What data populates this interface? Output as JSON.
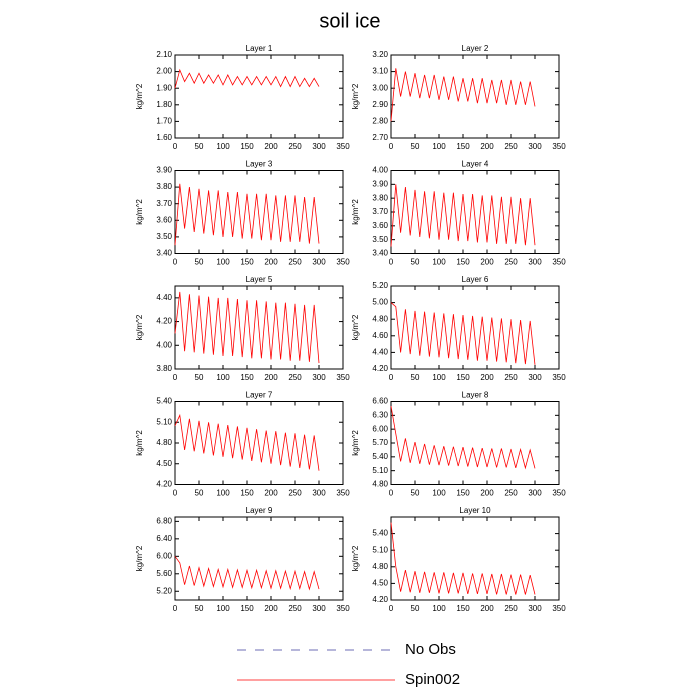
{
  "title": "soil ice",
  "legend": [
    {
      "name": "No Obs",
      "color": "#3c3c9c",
      "dash": true
    },
    {
      "name": "Spin002",
      "color": "#ff0000",
      "dash": false
    }
  ],
  "chart_data": [
    {
      "type": "line",
      "title": "Layer 1",
      "y_label": "kg/m^2",
      "xlim": [
        0,
        350
      ],
      "xticks": [
        0,
        50,
        100,
        150,
        200,
        250,
        300,
        350
      ],
      "ylim": [
        1.6,
        2.1
      ],
      "yticks": [
        {
          "value": 1.6,
          "label": "1.60"
        },
        {
          "value": 1.7,
          "label": "1.70"
        },
        {
          "value": 1.8,
          "label": "1.80"
        },
        {
          "value": 1.9,
          "label": "1.90"
        },
        {
          "value": 2.0,
          "label": "2.00"
        },
        {
          "value": 2.1,
          "label": "2.10"
        }
      ],
      "x": [
        0,
        10,
        20,
        30,
        40,
        50,
        60,
        70,
        80,
        90,
        100,
        110,
        120,
        130,
        140,
        150,
        160,
        170,
        180,
        190,
        200,
        210,
        220,
        230,
        240,
        250,
        260,
        270,
        280,
        290,
        300
      ],
      "series": [
        {
          "color": "#ff0000",
          "values": [
            1.9,
            2.01,
            1.94,
            1.99,
            1.93,
            1.99,
            1.93,
            1.98,
            1.93,
            1.98,
            1.92,
            1.98,
            1.92,
            1.97,
            1.92,
            1.97,
            1.92,
            1.97,
            1.92,
            1.97,
            1.92,
            1.97,
            1.91,
            1.97,
            1.91,
            1.97,
            1.91,
            1.96,
            1.91,
            1.96,
            1.91
          ]
        }
      ]
    },
    {
      "type": "line",
      "title": "Layer 2",
      "y_label": "kg/m^2",
      "xlim": [
        0,
        350
      ],
      "xticks": [
        0,
        50,
        100,
        150,
        200,
        250,
        300,
        350
      ],
      "ylim": [
        2.7,
        3.2
      ],
      "yticks": [
        {
          "value": 2.7,
          "label": "2.70"
        },
        {
          "value": 2.8,
          "label": "2.80"
        },
        {
          "value": 2.9,
          "label": "2.90"
        },
        {
          "value": 3.0,
          "label": "3.00"
        },
        {
          "value": 3.1,
          "label": "3.10"
        },
        {
          "value": 3.2,
          "label": "3.20"
        }
      ],
      "x": [
        0,
        10,
        20,
        30,
        40,
        50,
        60,
        70,
        80,
        90,
        100,
        110,
        120,
        130,
        140,
        150,
        160,
        170,
        180,
        190,
        200,
        210,
        220,
        230,
        240,
        250,
        260,
        270,
        280,
        290,
        300
      ],
      "series": [
        {
          "color": "#ff0000",
          "values": [
            2.8,
            3.12,
            2.95,
            3.1,
            2.95,
            3.09,
            2.94,
            3.08,
            2.94,
            3.08,
            2.93,
            3.07,
            2.93,
            3.07,
            2.92,
            3.06,
            2.92,
            3.06,
            2.91,
            3.06,
            2.91,
            3.05,
            2.91,
            3.05,
            2.9,
            3.05,
            2.9,
            3.04,
            2.9,
            3.04,
            2.89
          ]
        }
      ]
    },
    {
      "type": "line",
      "title": "Layer 3",
      "y_label": "kg/m^2",
      "xlim": [
        0,
        350
      ],
      "xticks": [
        0,
        50,
        100,
        150,
        200,
        250,
        300,
        350
      ],
      "ylim": [
        3.4,
        3.9
      ],
      "yticks": [
        {
          "value": 3.4,
          "label": "3.40"
        },
        {
          "value": 3.5,
          "label": "3.50"
        },
        {
          "value": 3.6,
          "label": "3.60"
        },
        {
          "value": 3.7,
          "label": "3.70"
        },
        {
          "value": 3.8,
          "label": "3.80"
        },
        {
          "value": 3.9,
          "label": "3.90"
        }
      ],
      "x": [
        0,
        10,
        20,
        30,
        40,
        50,
        60,
        70,
        80,
        90,
        100,
        110,
        120,
        130,
        140,
        150,
        160,
        170,
        180,
        190,
        200,
        210,
        220,
        230,
        240,
        250,
        260,
        270,
        280,
        290,
        300
      ],
      "series": [
        {
          "color": "#ff0000",
          "values": [
            3.45,
            3.82,
            3.55,
            3.8,
            3.53,
            3.79,
            3.52,
            3.78,
            3.51,
            3.78,
            3.5,
            3.77,
            3.5,
            3.77,
            3.49,
            3.76,
            3.49,
            3.76,
            3.48,
            3.76,
            3.48,
            3.75,
            3.47,
            3.75,
            3.47,
            3.75,
            3.47,
            3.74,
            3.46,
            3.74,
            3.46
          ]
        }
      ]
    },
    {
      "type": "line",
      "title": "Layer 4",
      "y_label": "kg/m^2",
      "xlim": [
        0,
        350
      ],
      "xticks": [
        0,
        50,
        100,
        150,
        200,
        250,
        300,
        350
      ],
      "ylim": [
        3.4,
        4.0
      ],
      "yticks": [
        {
          "value": 3.4,
          "label": "3.40"
        },
        {
          "value": 3.5,
          "label": "3.50"
        },
        {
          "value": 3.6,
          "label": "3.60"
        },
        {
          "value": 3.7,
          "label": "3.70"
        },
        {
          "value": 3.8,
          "label": "3.80"
        },
        {
          "value": 3.9,
          "label": "3.90"
        },
        {
          "value": 4.0,
          "label": "4.00"
        }
      ],
      "x": [
        0,
        10,
        20,
        30,
        40,
        50,
        60,
        70,
        80,
        90,
        100,
        110,
        120,
        130,
        140,
        150,
        160,
        170,
        180,
        190,
        200,
        210,
        220,
        230,
        240,
        250,
        260,
        270,
        280,
        290,
        300
      ],
      "series": [
        {
          "color": "#ff0000",
          "values": [
            3.45,
            3.9,
            3.55,
            3.88,
            3.53,
            3.86,
            3.52,
            3.85,
            3.51,
            3.85,
            3.5,
            3.84,
            3.5,
            3.84,
            3.49,
            3.83,
            3.49,
            3.83,
            3.48,
            3.82,
            3.48,
            3.82,
            3.47,
            3.81,
            3.47,
            3.81,
            3.47,
            3.8,
            3.46,
            3.8,
            3.46
          ]
        }
      ]
    },
    {
      "type": "line",
      "title": "Layer 5",
      "y_label": "kg/m^2",
      "xlim": [
        0,
        350
      ],
      "xticks": [
        0,
        50,
        100,
        150,
        200,
        250,
        300,
        350
      ],
      "ylim": [
        3.8,
        4.5
      ],
      "yticks": [
        {
          "value": 3.8,
          "label": "3.80"
        },
        {
          "value": 4.0,
          "label": "4.00"
        },
        {
          "value": 4.2,
          "label": "4.20"
        },
        {
          "value": 4.4,
          "label": "4.40"
        }
      ],
      "x": [
        0,
        10,
        20,
        30,
        40,
        50,
        60,
        70,
        80,
        90,
        100,
        110,
        120,
        130,
        140,
        150,
        160,
        170,
        180,
        190,
        200,
        210,
        220,
        230,
        240,
        250,
        260,
        270,
        280,
        290,
        300
      ],
      "series": [
        {
          "color": "#ff0000",
          "values": [
            4.1,
            4.45,
            3.95,
            4.43,
            3.94,
            4.42,
            3.93,
            4.41,
            3.92,
            4.4,
            3.91,
            4.4,
            3.91,
            4.39,
            3.9,
            4.38,
            3.89,
            4.38,
            3.89,
            4.37,
            3.88,
            4.36,
            3.88,
            4.36,
            3.87,
            4.35,
            3.87,
            4.34,
            3.86,
            4.34,
            3.85
          ]
        }
      ]
    },
    {
      "type": "line",
      "title": "Layer 6",
      "y_label": "kg/m^2",
      "xlim": [
        0,
        350
      ],
      "xticks": [
        0,
        50,
        100,
        150,
        200,
        250,
        300,
        350
      ],
      "ylim": [
        4.2,
        5.2
      ],
      "yticks": [
        {
          "value": 4.2,
          "label": "4.20"
        },
        {
          "value": 4.4,
          "label": "4.40"
        },
        {
          "value": 4.6,
          "label": "4.60"
        },
        {
          "value": 4.8,
          "label": "4.80"
        },
        {
          "value": 5.0,
          "label": "5.00"
        },
        {
          "value": 5.2,
          "label": "5.20"
        }
      ],
      "x": [
        0,
        10,
        20,
        30,
        40,
        50,
        60,
        70,
        80,
        90,
        100,
        110,
        120,
        130,
        140,
        150,
        160,
        170,
        180,
        190,
        200,
        210,
        220,
        230,
        240,
        250,
        260,
        270,
        280,
        290,
        300
      ],
      "series": [
        {
          "color": "#ff0000",
          "values": [
            5.0,
            4.95,
            4.4,
            4.92,
            4.38,
            4.9,
            4.36,
            4.89,
            4.35,
            4.88,
            4.34,
            4.87,
            4.33,
            4.86,
            4.32,
            4.85,
            4.31,
            4.84,
            4.3,
            4.83,
            4.3,
            4.82,
            4.29,
            4.81,
            4.28,
            4.8,
            4.27,
            4.79,
            4.26,
            4.78,
            4.25
          ]
        }
      ]
    },
    {
      "type": "line",
      "title": "Layer 7",
      "y_label": "kg/m^2",
      "xlim": [
        0,
        350
      ],
      "xticks": [
        0,
        50,
        100,
        150,
        200,
        250,
        300,
        350
      ],
      "ylim": [
        4.2,
        5.4
      ],
      "yticks": [
        {
          "value": 4.2,
          "label": "4.20"
        },
        {
          "value": 4.5,
          "label": "4.50"
        },
        {
          "value": 4.8,
          "label": "4.80"
        },
        {
          "value": 5.1,
          "label": "5.10"
        },
        {
          "value": 5.4,
          "label": "5.40"
        }
      ],
      "x": [
        0,
        10,
        20,
        30,
        40,
        50,
        60,
        70,
        80,
        90,
        100,
        110,
        120,
        130,
        140,
        150,
        160,
        170,
        180,
        190,
        200,
        210,
        220,
        230,
        240,
        250,
        260,
        270,
        280,
        290,
        300
      ],
      "series": [
        {
          "color": "#ff0000",
          "values": [
            5.05,
            5.2,
            4.7,
            5.15,
            4.68,
            5.12,
            4.65,
            5.1,
            4.62,
            5.08,
            4.6,
            5.06,
            4.58,
            5.04,
            4.56,
            5.02,
            4.54,
            5.0,
            4.52,
            4.98,
            4.5,
            4.97,
            4.48,
            4.95,
            4.46,
            4.94,
            4.44,
            4.92,
            4.42,
            4.91,
            4.4
          ]
        }
      ]
    },
    {
      "type": "line",
      "title": "Layer 8",
      "y_label": "kg/m^2",
      "xlim": [
        0,
        350
      ],
      "xticks": [
        0,
        50,
        100,
        150,
        200,
        250,
        300,
        350
      ],
      "ylim": [
        4.8,
        6.6
      ],
      "yticks": [
        {
          "value": 4.8,
          "label": "4.80"
        },
        {
          "value": 5.1,
          "label": "5.10"
        },
        {
          "value": 5.4,
          "label": "5.40"
        },
        {
          "value": 5.7,
          "label": "5.70"
        },
        {
          "value": 6.0,
          "label": "6.00"
        },
        {
          "value": 6.3,
          "label": "6.30"
        },
        {
          "value": 6.6,
          "label": "6.60"
        }
      ],
      "x": [
        0,
        10,
        20,
        30,
        40,
        50,
        60,
        70,
        80,
        90,
        100,
        110,
        120,
        130,
        140,
        150,
        160,
        170,
        180,
        190,
        200,
        210,
        220,
        230,
        240,
        250,
        260,
        270,
        280,
        290,
        300
      ],
      "series": [
        {
          "color": "#ff0000",
          "values": [
            6.5,
            5.9,
            5.3,
            5.8,
            5.27,
            5.72,
            5.25,
            5.68,
            5.23,
            5.65,
            5.22,
            5.63,
            5.21,
            5.62,
            5.2,
            5.61,
            5.19,
            5.6,
            5.18,
            5.59,
            5.18,
            5.58,
            5.17,
            5.58,
            5.17,
            5.57,
            5.16,
            5.56,
            5.16,
            5.55,
            5.15
          ]
        }
      ]
    },
    {
      "type": "line",
      "title": "Layer 9",
      "y_label": "kg/m^2",
      "xlim": [
        0,
        350
      ],
      "xticks": [
        0,
        50,
        100,
        150,
        200,
        250,
        300,
        350
      ],
      "ylim": [
        5.0,
        6.9
      ],
      "yticks": [
        {
          "value": 5.2,
          "label": "5.20"
        },
        {
          "value": 5.6,
          "label": "5.60"
        },
        {
          "value": 6.0,
          "label": "6.00"
        },
        {
          "value": 6.4,
          "label": "6.40"
        },
        {
          "value": 6.8,
          "label": "6.80"
        }
      ],
      "x": [
        0,
        10,
        20,
        30,
        40,
        50,
        60,
        70,
        80,
        90,
        100,
        110,
        120,
        130,
        140,
        150,
        160,
        170,
        180,
        190,
        200,
        210,
        220,
        230,
        240,
        250,
        260,
        270,
        280,
        290,
        300
      ],
      "series": [
        {
          "color": "#ff0000",
          "values": [
            6.0,
            5.85,
            5.35,
            5.78,
            5.33,
            5.74,
            5.32,
            5.72,
            5.31,
            5.7,
            5.3,
            5.7,
            5.29,
            5.69,
            5.29,
            5.68,
            5.28,
            5.68,
            5.28,
            5.67,
            5.27,
            5.67,
            5.27,
            5.66,
            5.26,
            5.66,
            5.26,
            5.65,
            5.25,
            5.65,
            5.25
          ]
        }
      ]
    },
    {
      "type": "line",
      "title": "Layer 10",
      "y_label": "kg/m^2",
      "xlim": [
        0,
        350
      ],
      "xticks": [
        0,
        50,
        100,
        150,
        200,
        250,
        300,
        350
      ],
      "ylim": [
        4.2,
        5.7
      ],
      "yticks": [
        {
          "value": 4.2,
          "label": "4.20"
        },
        {
          "value": 4.5,
          "label": "4.50"
        },
        {
          "value": 4.8,
          "label": "4.80"
        },
        {
          "value": 5.1,
          "label": "5.10"
        },
        {
          "value": 5.4,
          "label": "5.40"
        }
      ],
      "x": [
        0,
        10,
        20,
        30,
        40,
        50,
        60,
        70,
        80,
        90,
        100,
        110,
        120,
        130,
        140,
        150,
        160,
        170,
        180,
        190,
        200,
        210,
        220,
        230,
        240,
        250,
        260,
        270,
        280,
        290,
        300
      ],
      "series": [
        {
          "color": "#ff0000",
          "values": [
            5.6,
            4.8,
            4.35,
            4.74,
            4.34,
            4.72,
            4.33,
            4.71,
            4.33,
            4.7,
            4.32,
            4.7,
            4.32,
            4.69,
            4.32,
            4.69,
            4.31,
            4.68,
            4.31,
            4.68,
            4.31,
            4.67,
            4.3,
            4.67,
            4.3,
            4.66,
            4.3,
            4.66,
            4.3,
            4.65,
            4.3
          ]
        }
      ]
    }
  ]
}
